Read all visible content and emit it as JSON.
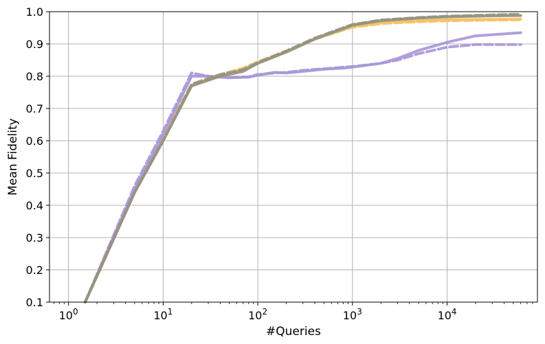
{
  "chart_data": {
    "type": "line",
    "xlabel": "#Queries",
    "ylabel": "Mean Fidelity",
    "xscale": "log",
    "xlim": [
      0.63,
      90000
    ],
    "ylim": [
      0.1,
      1.0
    ],
    "grid": true,
    "x_tick_base": "10",
    "x_ticks": [
      {
        "value": 1,
        "exp": "0"
      },
      {
        "value": 10,
        "exp": "1"
      },
      {
        "value": 100,
        "exp": "2"
      },
      {
        "value": 1000,
        "exp": "3"
      },
      {
        "value": 10000,
        "exp": "4"
      }
    ],
    "y_ticks": [
      {
        "value": 0.1,
        "label": "0.1"
      },
      {
        "value": 0.2,
        "label": "0.2"
      },
      {
        "value": 0.3,
        "label": "0.3"
      },
      {
        "value": 0.4,
        "label": "0.4"
      },
      {
        "value": 0.5,
        "label": "0.5"
      },
      {
        "value": 0.6,
        "label": "0.6"
      },
      {
        "value": 0.7,
        "label": "0.7"
      },
      {
        "value": 0.8,
        "label": "0.8"
      },
      {
        "value": 0.9,
        "label": "0.9"
      },
      {
        "value": 1.0,
        "label": "1.0"
      }
    ],
    "series": [
      {
        "color": "#f5c163",
        "dash": "solid",
        "x": [
          1.5,
          5,
          10,
          20,
          40,
          70,
          100,
          200,
          400,
          1000,
          2000,
          5000,
          10000,
          30000,
          60000
        ],
        "y": [
          0.1,
          0.44,
          0.61,
          0.77,
          0.8,
          0.82,
          0.84,
          0.875,
          0.915,
          0.955,
          0.966,
          0.972,
          0.975,
          0.976,
          0.977
        ]
      },
      {
        "color": "#f5c163",
        "dash": "dashed",
        "x": [
          1.5,
          5,
          10,
          20,
          40,
          70,
          100,
          200,
          400,
          1000,
          2000,
          5000,
          10000,
          30000,
          60000
        ],
        "y": [
          0.1,
          0.44,
          0.61,
          0.775,
          0.805,
          0.825,
          0.845,
          0.878,
          0.915,
          0.952,
          0.963,
          0.969,
          0.972,
          0.974,
          0.975
        ]
      },
      {
        "color": "#a898d8",
        "dash": "solid",
        "x": [
          1.5,
          5,
          10,
          20,
          30,
          50,
          80,
          100,
          150,
          200,
          300,
          500,
          800,
          1000,
          2000,
          3000,
          5000,
          10000,
          20000,
          60000
        ],
        "y": [
          0.1,
          0.45,
          0.62,
          0.8,
          0.8,
          0.795,
          0.797,
          0.803,
          0.812,
          0.81,
          0.815,
          0.822,
          0.825,
          0.828,
          0.84,
          0.855,
          0.88,
          0.905,
          0.925,
          0.935
        ]
      },
      {
        "color": "#a898d8",
        "dash": "dashed",
        "x": [
          1.5,
          5,
          10,
          20,
          30,
          50,
          80,
          100,
          150,
          200,
          300,
          500,
          800,
          1000,
          2000,
          3000,
          5000,
          10000,
          20000,
          60000
        ],
        "y": [
          0.1,
          0.46,
          0.63,
          0.81,
          0.8,
          0.797,
          0.798,
          0.805,
          0.81,
          0.812,
          0.818,
          0.823,
          0.828,
          0.83,
          0.84,
          0.85,
          0.87,
          0.89,
          0.898,
          0.898
        ]
      },
      {
        "color": "#969380",
        "dash": "solid",
        "x": [
          1.5,
          5,
          10,
          20,
          40,
          70,
          100,
          200,
          400,
          1000,
          2000,
          5000,
          10000,
          30000,
          60000
        ],
        "y": [
          0.1,
          0.44,
          0.6,
          0.77,
          0.8,
          0.815,
          0.84,
          0.875,
          0.915,
          0.958,
          0.972,
          0.98,
          0.984,
          0.987,
          0.988
        ]
      },
      {
        "color": "#969380",
        "dash": "dashed",
        "x": [
          1.5,
          5,
          10,
          20,
          40,
          70,
          100,
          200,
          400,
          1000,
          2000,
          5000,
          10000,
          30000,
          60000
        ],
        "y": [
          0.1,
          0.44,
          0.6,
          0.775,
          0.805,
          0.82,
          0.842,
          0.878,
          0.918,
          0.96,
          0.974,
          0.982,
          0.986,
          0.99,
          0.992
        ]
      }
    ]
  }
}
